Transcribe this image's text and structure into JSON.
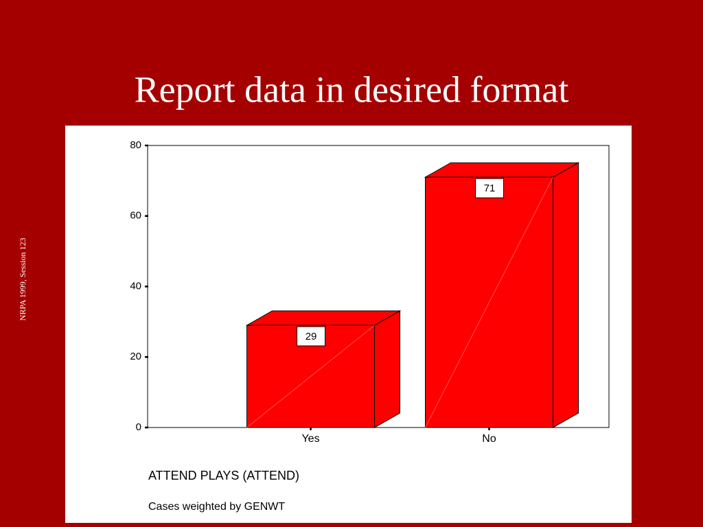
{
  "title": "Report data in desired format",
  "side_note": "NRPA 1999, Session 123",
  "chart_data": {
    "type": "bar3d",
    "categories": [
      "Yes",
      "No"
    ],
    "values": [
      29,
      71
    ],
    "color": "#ff0000",
    "ylim": [
      0,
      80
    ],
    "yticks": [
      0,
      20,
      40,
      60,
      80
    ],
    "x_label": "ATTEND PLAYS (ATTEND)",
    "note": "Cases weighted by GENWT"
  }
}
